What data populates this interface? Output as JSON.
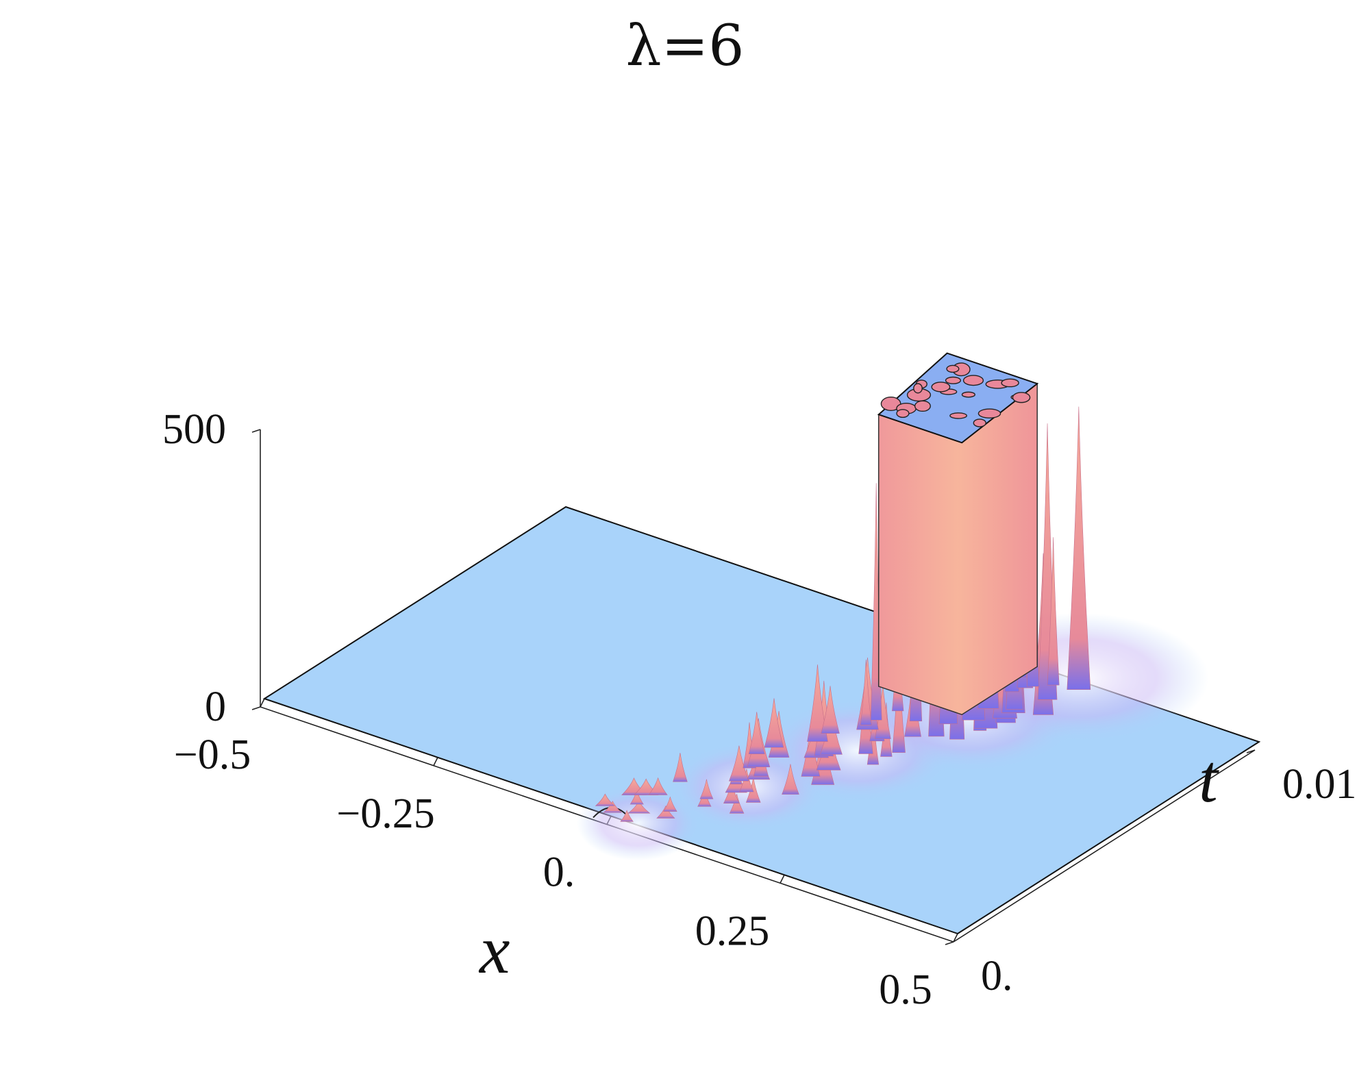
{
  "chart_data": {
    "type": "surface3d",
    "title": "λ=6",
    "xlabel": "x",
    "ylabel": "t",
    "zlabel": "",
    "x_range": [
      -0.5,
      0.5
    ],
    "t_range": [
      0,
      0.01
    ],
    "z_range": [
      0,
      500
    ],
    "x_ticks": [
      {
        "value": -0.5,
        "label": "−0.5"
      },
      {
        "value": -0.25,
        "label": "−0.25"
      },
      {
        "value": 0,
        "label": "0."
      },
      {
        "value": 0.25,
        "label": "0.25"
      },
      {
        "value": 0.5,
        "label": "0.5"
      }
    ],
    "t_ticks": [
      {
        "value": 0,
        "label": "0."
      },
      {
        "value": 0.01,
        "label": "0.01"
      }
    ],
    "z_ticks": [
      {
        "value": 0,
        "label": "0"
      },
      {
        "value": 500,
        "label": "500"
      }
    ],
    "surface": {
      "base_level": 0,
      "initial_bump": {
        "x": 0.0,
        "t": 0.0,
        "height": 14
      },
      "front_path": [
        {
          "t": 0.0,
          "x": 0.0
        },
        {
          "t": 0.0025,
          "x": 0.05
        },
        {
          "t": 0.005,
          "x": 0.1
        },
        {
          "t": 0.0075,
          "x": 0.15
        },
        {
          "t": 0.01,
          "x": 0.2
        }
      ],
      "clipped_plateau": {
        "height": 500,
        "t_from": 0.0075,
        "t_to": 0.01
      }
    },
    "colors": {
      "flat": "#a9d3fa",
      "peak": "#f4a19a",
      "shadow": "#6c6ff0",
      "cap": "#8aaef2"
    }
  }
}
